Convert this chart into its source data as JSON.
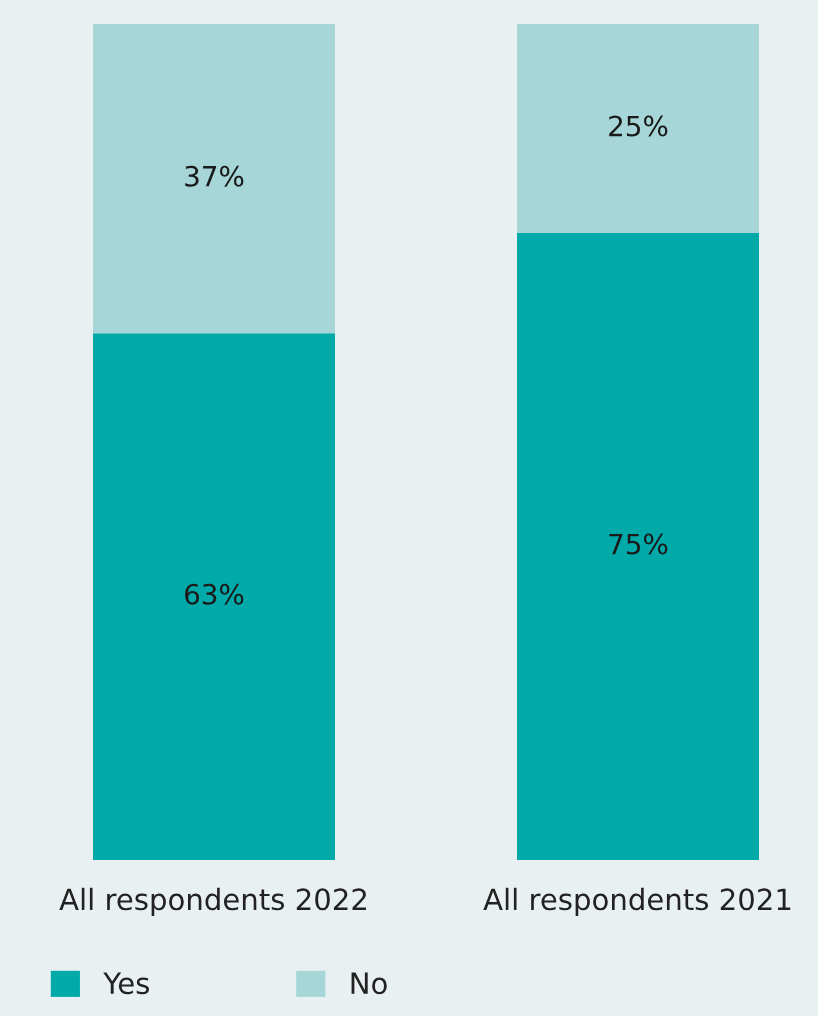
{
  "chart_data": {
    "type": "bar",
    "stacked": true,
    "categories": [
      "All respondents 2022",
      "All respondents 2021"
    ],
    "series": [
      {
        "name": "Yes",
        "color": "#00aaa9",
        "values": [
          63,
          75
        ],
        "value_labels": [
          "63%",
          "75%"
        ]
      },
      {
        "name": "No",
        "color": "#a6d6d7",
        "values": [
          37,
          25
        ],
        "value_labels": [
          "37%",
          "25%"
        ]
      }
    ],
    "legend": "bottom left"
  }
}
